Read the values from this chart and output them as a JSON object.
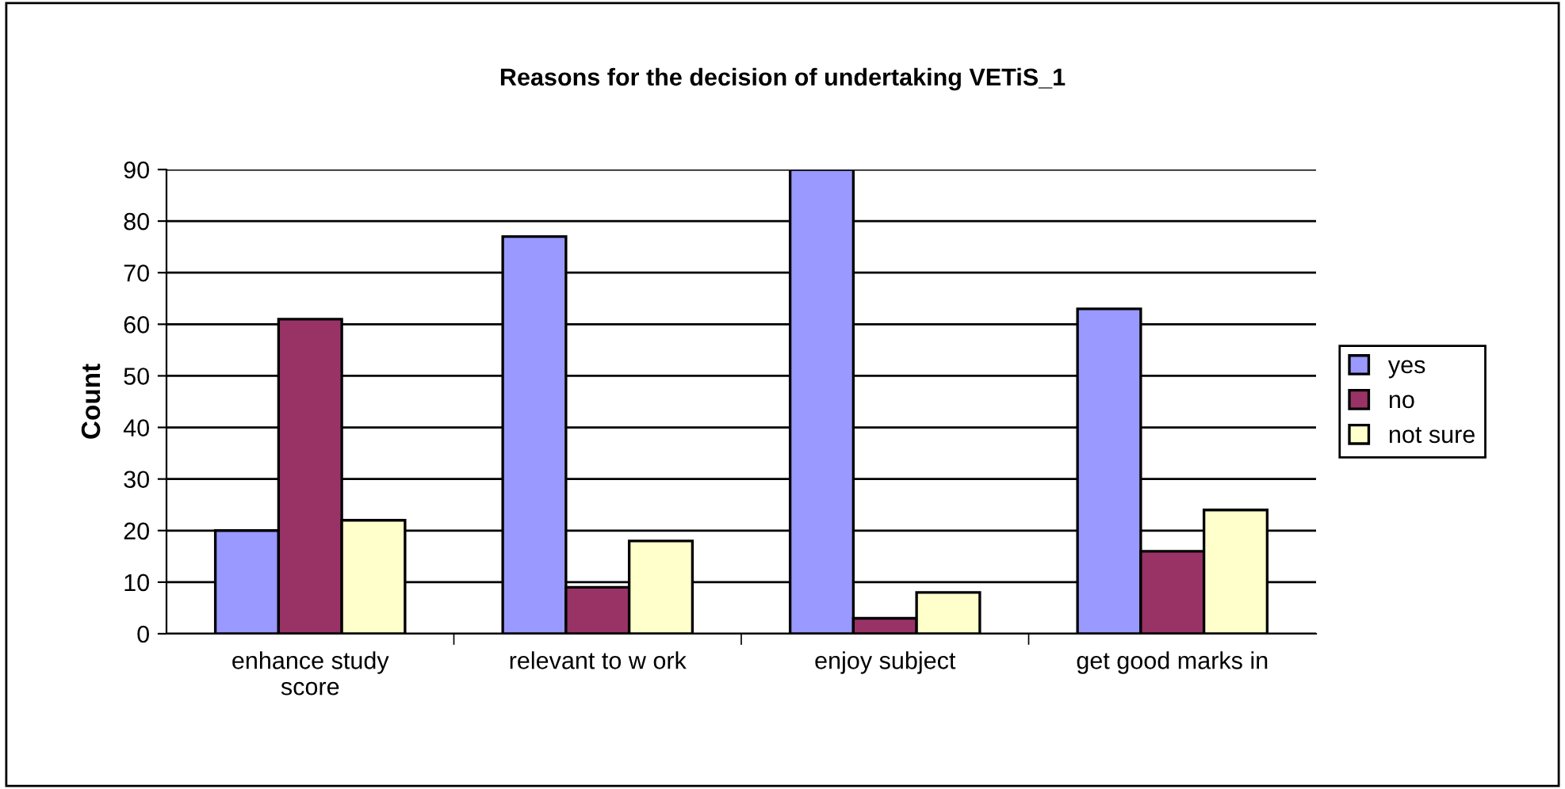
{
  "chart_data": {
    "type": "bar",
    "title": "Reasons for the decision of undertaking VETiS_1",
    "ylabel": "Count",
    "categories": [
      "enhance study\nscore",
      "relevant to w ork",
      "enjoy subject",
      "get good marks in"
    ],
    "series": [
      {
        "name": "yes",
        "color": "#9999ff",
        "values": [
          20,
          77,
          90,
          63
        ]
      },
      {
        "name": "no",
        "color": "#993366",
        "values": [
          61,
          9,
          3,
          16
        ]
      },
      {
        "name": "not sure",
        "color": "#ffffcc",
        "values": [
          22,
          18,
          8,
          24
        ]
      }
    ],
    "ylim": [
      0,
      90
    ],
    "yticks": [
      0,
      10,
      20,
      30,
      40,
      50,
      60,
      70,
      80,
      90
    ],
    "grid": "y",
    "legend": "right"
  }
}
